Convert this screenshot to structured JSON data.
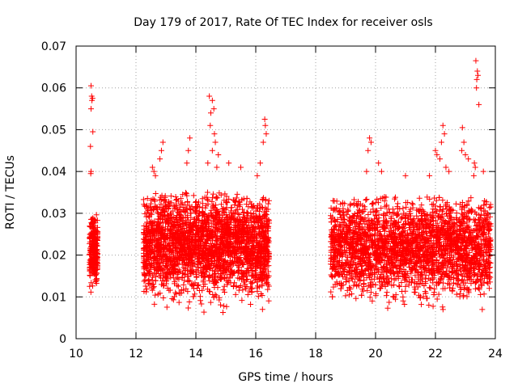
{
  "chart_data": {
    "type": "scatter",
    "title": "Day 179 of 2017, Rate Of TEC Index for receiver osls",
    "xlabel": "GPS time / hours",
    "ylabel": "ROTI / TECUs",
    "xlim": [
      10,
      24
    ],
    "ylim": [
      0,
      0.07
    ],
    "xticks": [
      10,
      12,
      14,
      16,
      18,
      20,
      22,
      24
    ],
    "xtick_labels": [
      "10",
      "12",
      "14",
      "16",
      "18",
      "20",
      "22",
      "24"
    ],
    "yticks": [
      0,
      0.01,
      0.02,
      0.03,
      0.04,
      0.05,
      0.06,
      0.07
    ],
    "ytick_labels": [
      "0",
      "0.01",
      "0.02",
      "0.03",
      "0.04",
      "0.05",
      "0.06",
      "0.07"
    ],
    "grid": true,
    "marker": "+",
    "color": "#ff0000",
    "segments": [
      {
        "x_range": [
          10.45,
          10.72
        ],
        "y_min": 0.009,
        "y_max": 0.03,
        "n": 260
      },
      {
        "x_range": [
          12.25,
          16.45
        ],
        "y_min": 0.006,
        "y_max": 0.035,
        "n": 2600
      },
      {
        "x_range": [
          18.5,
          23.85
        ],
        "y_min": 0.006,
        "y_max": 0.034,
        "n": 3000
      }
    ],
    "outliers": [
      {
        "x": 10.5,
        "y": 0.0605
      },
      {
        "x": 10.52,
        "y": 0.058
      },
      {
        "x": 10.55,
        "y": 0.0575
      },
      {
        "x": 10.53,
        "y": 0.057
      },
      {
        "x": 10.5,
        "y": 0.055
      },
      {
        "x": 10.56,
        "y": 0.0495
      },
      {
        "x": 10.48,
        "y": 0.046
      },
      {
        "x": 10.5,
        "y": 0.04
      },
      {
        "x": 10.49,
        "y": 0.0395
      },
      {
        "x": 12.55,
        "y": 0.041
      },
      {
        "x": 12.6,
        "y": 0.04
      },
      {
        "x": 12.65,
        "y": 0.039
      },
      {
        "x": 12.9,
        "y": 0.047
      },
      {
        "x": 12.85,
        "y": 0.045
      },
      {
        "x": 12.8,
        "y": 0.043
      },
      {
        "x": 13.8,
        "y": 0.048
      },
      {
        "x": 13.75,
        "y": 0.045
      },
      {
        "x": 13.7,
        "y": 0.042
      },
      {
        "x": 14.45,
        "y": 0.058
      },
      {
        "x": 14.55,
        "y": 0.057
      },
      {
        "x": 14.6,
        "y": 0.055
      },
      {
        "x": 14.5,
        "y": 0.054
      },
      {
        "x": 14.48,
        "y": 0.051
      },
      {
        "x": 14.62,
        "y": 0.049
      },
      {
        "x": 14.65,
        "y": 0.047
      },
      {
        "x": 14.55,
        "y": 0.045
      },
      {
        "x": 14.4,
        "y": 0.042
      },
      {
        "x": 14.75,
        "y": 0.044
      },
      {
        "x": 14.7,
        "y": 0.041
      },
      {
        "x": 15.1,
        "y": 0.042
      },
      {
        "x": 15.5,
        "y": 0.041
      },
      {
        "x": 16.3,
        "y": 0.0525
      },
      {
        "x": 16.32,
        "y": 0.051
      },
      {
        "x": 16.35,
        "y": 0.049
      },
      {
        "x": 16.25,
        "y": 0.047
      },
      {
        "x": 16.15,
        "y": 0.042
      },
      {
        "x": 16.05,
        "y": 0.039
      },
      {
        "x": 19.8,
        "y": 0.048
      },
      {
        "x": 19.85,
        "y": 0.047
      },
      {
        "x": 19.75,
        "y": 0.045
      },
      {
        "x": 19.7,
        "y": 0.04
      },
      {
        "x": 20.1,
        "y": 0.042
      },
      {
        "x": 20.2,
        "y": 0.04
      },
      {
        "x": 21.0,
        "y": 0.039
      },
      {
        "x": 21.8,
        "y": 0.039
      },
      {
        "x": 22.0,
        "y": 0.045
      },
      {
        "x": 22.05,
        "y": 0.044
      },
      {
        "x": 22.25,
        "y": 0.051
      },
      {
        "x": 22.3,
        "y": 0.049
      },
      {
        "x": 22.2,
        "y": 0.047
      },
      {
        "x": 22.15,
        "y": 0.043
      },
      {
        "x": 22.35,
        "y": 0.041
      },
      {
        "x": 22.45,
        "y": 0.04
      },
      {
        "x": 22.9,
        "y": 0.0505
      },
      {
        "x": 22.95,
        "y": 0.047
      },
      {
        "x": 22.88,
        "y": 0.045
      },
      {
        "x": 23.0,
        "y": 0.044
      },
      {
        "x": 23.1,
        "y": 0.043
      },
      {
        "x": 23.35,
        "y": 0.0665
      },
      {
        "x": 23.4,
        "y": 0.064
      },
      {
        "x": 23.42,
        "y": 0.063
      },
      {
        "x": 23.38,
        "y": 0.062
      },
      {
        "x": 23.37,
        "y": 0.06
      },
      {
        "x": 23.45,
        "y": 0.056
      },
      {
        "x": 23.3,
        "y": 0.042
      },
      {
        "x": 23.33,
        "y": 0.041
      },
      {
        "x": 23.28,
        "y": 0.039
      },
      {
        "x": 23.6,
        "y": 0.04
      }
    ]
  }
}
